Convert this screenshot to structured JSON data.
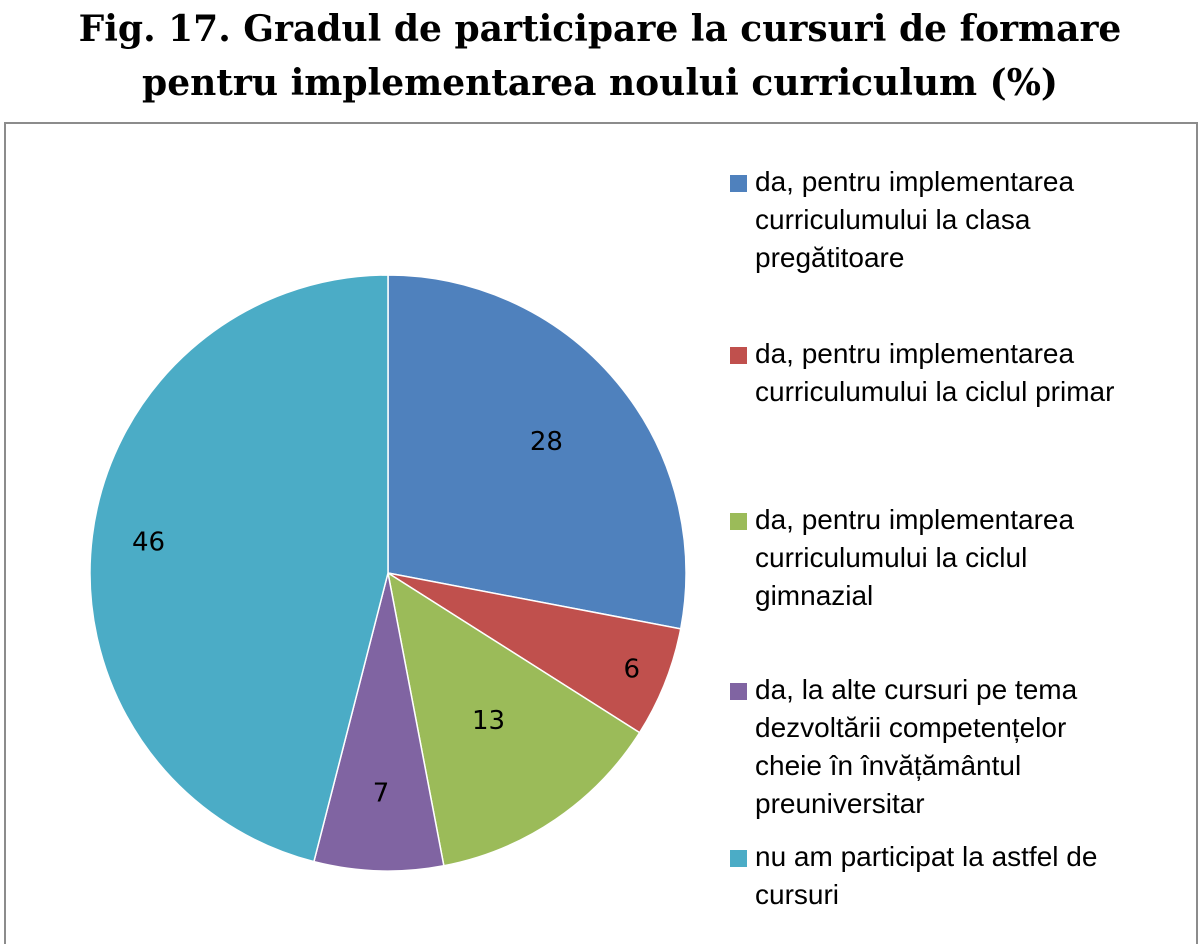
{
  "title": {
    "line1": "Fig. 17. Gradul de participare la cursuri de formare",
    "line2": "pentru implementarea noului curriculum (%)"
  },
  "chart_data": {
    "type": "pie",
    "title": "Fig. 17. Gradul de participare la cursuri de formare pentru implementarea noului curriculum (%)",
    "categories": [
      "da, pentru implementarea curriculumului la clasa pregătitoare",
      "da, pentru implementarea curriculumului la ciclul primar",
      "da, pentru implementarea curriculumului la ciclul gimnazial",
      "da, la alte cursuri pe tema dezvoltării competențelor cheie în învățământul preuniversitar",
      "nu am participat la astfel de cursuri"
    ],
    "values": [
      28,
      6,
      13,
      7,
      46
    ],
    "data_labels": [
      "28",
      "6",
      "13",
      "7",
      "46"
    ],
    "colors": [
      "#4f81bd",
      "#c0504d",
      "#9bbb59",
      "#8064a2",
      "#4bacc6"
    ],
    "legend_placement": "right",
    "start_angle": "12 o'clock",
    "direction": "clockwise"
  },
  "legend": {
    "items": [
      {
        "lines": [
          "da, pentru implementarea",
          "curriculumului la clasa",
          "pregătitoare"
        ],
        "color": "#4f81bd"
      },
      {
        "lines": [
          "da, pentru implementarea",
          "curriculumului la ciclul primar"
        ],
        "color": "#c0504d"
      },
      {
        "lines": [
          "da, pentru implementarea",
          "curriculumului la ciclul",
          "gimnazial"
        ],
        "color": "#9bbb59"
      },
      {
        "lines": [
          "da, la alte cursuri pe tema",
          "dezvoltării competențelor",
          "cheie în învățământul",
          "preuniversitar"
        ],
        "color": "#8064a2"
      },
      {
        "lines": [
          "nu am participat la astfel de",
          "cursuri"
        ],
        "color": "#4bacc6"
      }
    ]
  }
}
